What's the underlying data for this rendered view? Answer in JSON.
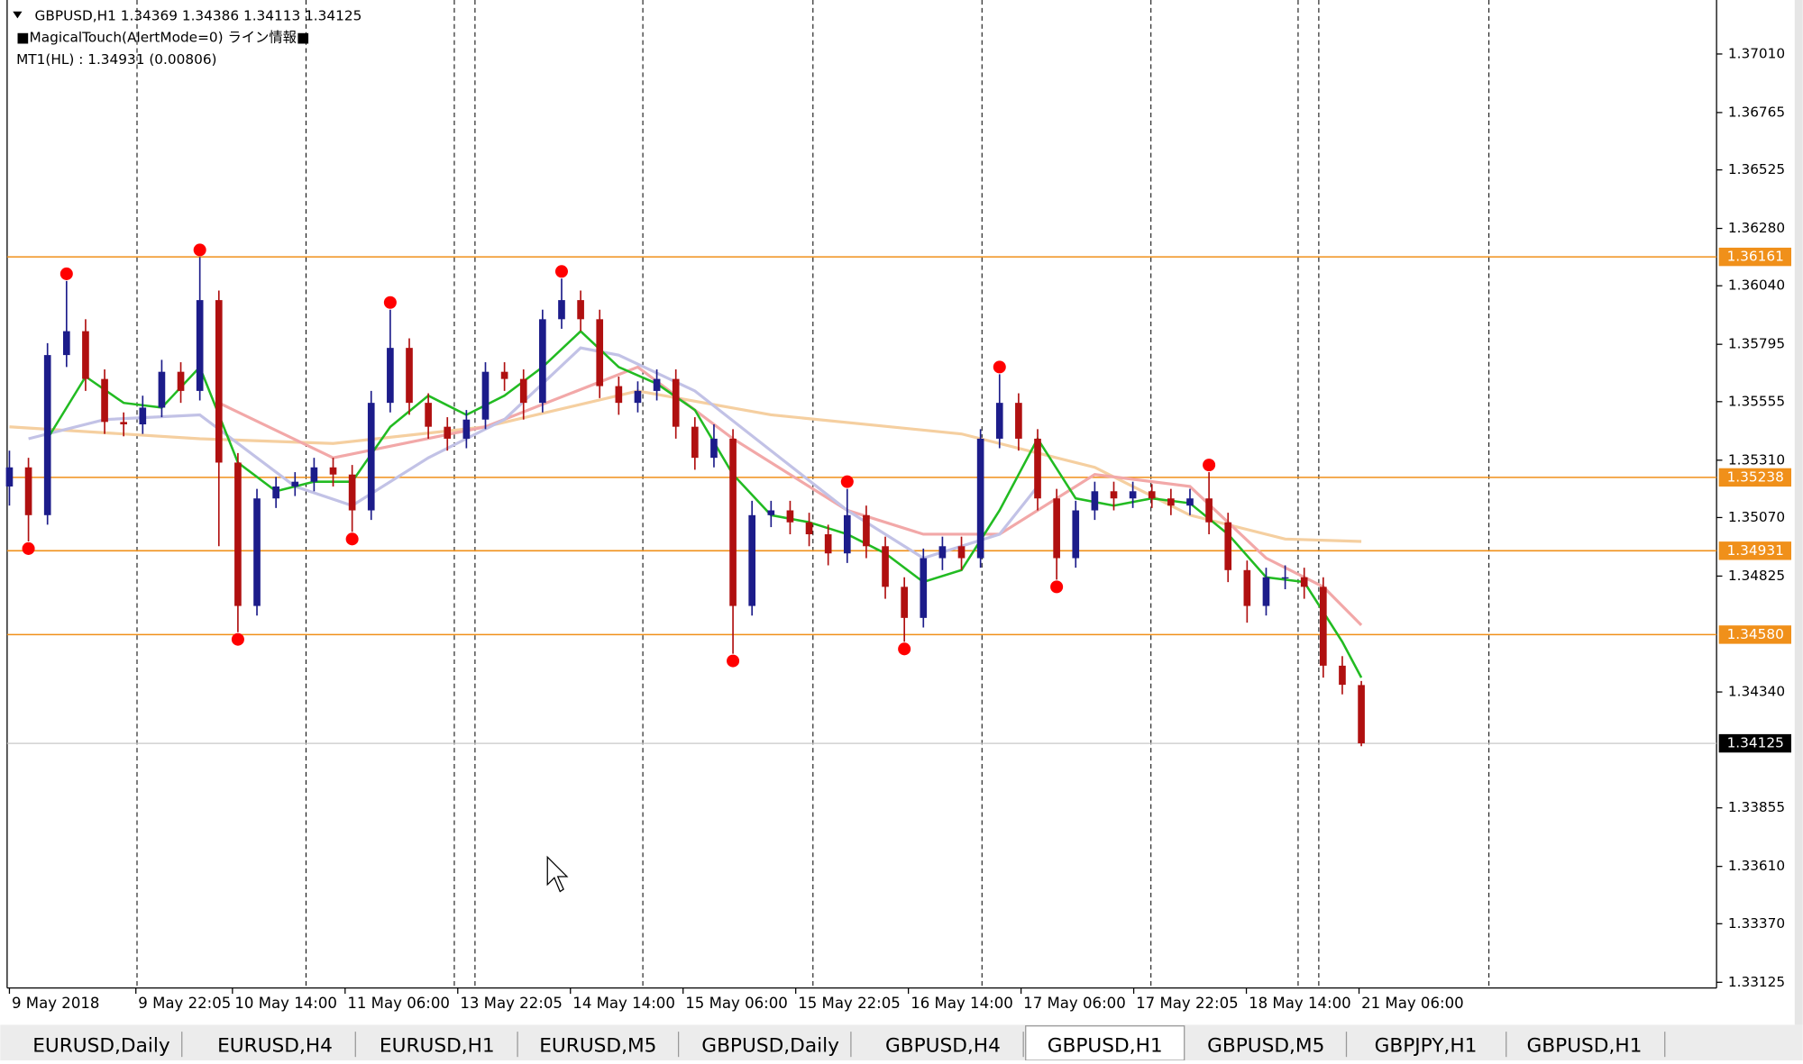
{
  "header": {
    "symbol_line": "GBPUSD,H1  1.34369 1.34386 1.34113 1.34125",
    "indicator": "■MagicalTouch(AlertMode=0) ライン情報■",
    "mt1": "MT1(HL) : 1.34931 (0.00806)"
  },
  "chart_data": {
    "type": "candlestick",
    "up_color": "#1c1c8a",
    "down_color": "#b01010",
    "ylim": [
      1.33101,
      1.37236
    ],
    "yticks": [
      {
        "value": 1.3701,
        "label": "1.37010"
      },
      1.36765,
      1.36525,
      {
        "value": 1.3628,
        "label": "1.36280"
      },
      {
        "value": 1.3604,
        "label": "1.36040"
      },
      1.35795,
      1.35555,
      {
        "value": 1.3531,
        "label": "1.35310"
      },
      {
        "value": 1.3507,
        "label": "1.35070"
      },
      1.34825,
      {
        "value": 1.3434,
        "label": "1.34340"
      },
      1.33855,
      {
        "value": 1.3361,
        "label": "1.33610"
      },
      {
        "value": 1.3337,
        "label": "1.33370"
      },
      1.33125
    ],
    "x_labels": [
      "9 May 2018",
      "9 May 22:05",
      "10 May 14:00",
      "11 May 06:00",
      "13 May 22:05",
      "14 May 14:00",
      "15 May 06:00",
      "15 May 22:05",
      "16 May 14:00",
      "17 May 06:00",
      "17 May 22:05",
      "18 May 14:00",
      "21 May 06:00"
    ],
    "candles": [
      [
        1.352,
        1.3535,
        1.3512,
        1.3528
      ],
      [
        1.3528,
        1.3532,
        1.3497,
        1.3508
      ],
      [
        1.3508,
        1.358,
        1.3504,
        1.3575
      ],
      [
        1.3575,
        1.3606,
        1.357,
        1.3585
      ],
      [
        1.3585,
        1.359,
        1.356,
        1.3565
      ],
      [
        1.3565,
        1.3569,
        1.3542,
        1.3547
      ],
      [
        1.3547,
        1.3551,
        1.3541,
        1.3546
      ],
      [
        1.3546,
        1.3558,
        1.3542,
        1.3553
      ],
      [
        1.3553,
        1.3573,
        1.3549,
        1.3568
      ],
      [
        1.3568,
        1.3572,
        1.3555,
        1.356
      ],
      [
        1.356,
        1.3616,
        1.3556,
        1.3598
      ],
      [
        1.3598,
        1.3602,
        1.3495,
        1.353
      ],
      [
        1.353,
        1.3534,
        1.3459,
        1.347
      ],
      [
        1.347,
        1.3519,
        1.3466,
        1.3515
      ],
      [
        1.3515,
        1.3524,
        1.3511,
        1.352
      ],
      [
        1.352,
        1.3526,
        1.3516,
        1.3522
      ],
      [
        1.3522,
        1.3532,
        1.3518,
        1.3528
      ],
      [
        1.3528,
        1.3532,
        1.352,
        1.3525
      ],
      [
        1.3525,
        1.3529,
        1.3501,
        1.351
      ],
      [
        1.351,
        1.356,
        1.3506,
        1.3555
      ],
      [
        1.3555,
        1.3594,
        1.3551,
        1.3578
      ],
      [
        1.3578,
        1.3582,
        1.355,
        1.3555
      ],
      [
        1.3555,
        1.3559,
        1.354,
        1.3545
      ],
      [
        1.3545,
        1.3549,
        1.3535,
        1.354
      ],
      [
        1.354,
        1.3552,
        1.3536,
        1.3548
      ],
      [
        1.3548,
        1.3572,
        1.3544,
        1.3568
      ],
      [
        1.3568,
        1.3572,
        1.356,
        1.3565
      ],
      [
        1.3565,
        1.3569,
        1.3548,
        1.3555
      ],
      [
        1.3555,
        1.3594,
        1.3551,
        1.359
      ],
      [
        1.359,
        1.3607,
        1.3586,
        1.3598
      ],
      [
        1.3598,
        1.3602,
        1.3585,
        1.359
      ],
      [
        1.359,
        1.3594,
        1.3557,
        1.3562
      ],
      [
        1.3562,
        1.3566,
        1.355,
        1.3555
      ],
      [
        1.3555,
        1.3564,
        1.3551,
        1.356
      ],
      [
        1.356,
        1.3569,
        1.3556,
        1.3565
      ],
      [
        1.3565,
        1.3569,
        1.354,
        1.3545
      ],
      [
        1.3545,
        1.3549,
        1.3527,
        1.3532
      ],
      [
        1.3532,
        1.3546,
        1.3528,
        1.354
      ],
      [
        1.354,
        1.3544,
        1.345,
        1.347
      ],
      [
        1.347,
        1.3514,
        1.3466,
        1.3508
      ],
      [
        1.3508,
        1.3514,
        1.3503,
        1.351
      ],
      [
        1.351,
        1.3514,
        1.35,
        1.3505
      ],
      [
        1.3505,
        1.3509,
        1.3495,
        1.35
      ],
      [
        1.35,
        1.3504,
        1.3487,
        1.3492
      ],
      [
        1.3492,
        1.3519,
        1.3488,
        1.3508
      ],
      [
        1.3508,
        1.3512,
        1.349,
        1.3495
      ],
      [
        1.3495,
        1.3499,
        1.3473,
        1.3478
      ],
      [
        1.3478,
        1.3482,
        1.3455,
        1.3465
      ],
      [
        1.3465,
        1.3494,
        1.3461,
        1.349
      ],
      [
        1.349,
        1.3499,
        1.3485,
        1.3495
      ],
      [
        1.3495,
        1.3499,
        1.3485,
        1.349
      ],
      [
        1.349,
        1.3544,
        1.3486,
        1.354
      ],
      [
        1.354,
        1.3567,
        1.3536,
        1.3555
      ],
      [
        1.3555,
        1.3559,
        1.3535,
        1.354
      ],
      [
        1.354,
        1.3544,
        1.351,
        1.3515
      ],
      [
        1.3515,
        1.3519,
        1.3481,
        1.349
      ],
      [
        1.349,
        1.3514,
        1.3486,
        1.351
      ],
      [
        1.351,
        1.3522,
        1.3506,
        1.3518
      ],
      [
        1.3518,
        1.3522,
        1.351,
        1.3515
      ],
      [
        1.3515,
        1.3522,
        1.3511,
        1.3518
      ],
      [
        1.3518,
        1.3521,
        1.3511,
        1.3515
      ],
      [
        1.3515,
        1.3519,
        1.3508,
        1.3512
      ],
      [
        1.3512,
        1.3519,
        1.3508,
        1.3515
      ],
      [
        1.3515,
        1.3526,
        1.35,
        1.3505
      ],
      [
        1.3505,
        1.3509,
        1.348,
        1.3485
      ],
      [
        1.3485,
        1.3489,
        1.3463,
        1.347
      ],
      [
        1.347,
        1.3486,
        1.3466,
        1.3482
      ],
      [
        1.3482,
        1.3487,
        1.3477,
        1.3482
      ],
      [
        1.3482,
        1.3486,
        1.3473,
        1.3478
      ],
      [
        1.3478,
        1.3482,
        1.344,
        1.3445
      ],
      [
        1.3445,
        1.3449,
        1.3433,
        1.3437
      ],
      [
        1.34369,
        1.34386,
        1.34113,
        1.34125
      ]
    ],
    "swing_points": {
      "color": "#ff0000",
      "x": [
        1,
        3,
        10,
        12,
        18,
        20,
        29,
        38,
        44,
        47,
        52,
        55,
        63
      ],
      "values": [
        1.3494,
        1.3609,
        1.3619,
        1.3456,
        1.3498,
        1.3597,
        1.361,
        1.3447,
        1.3522,
        1.3452,
        1.357,
        1.3478,
        1.3529
      ]
    },
    "moving_averages": [
      {
        "color": "#f5cfa0",
        "x": [
          0,
          10,
          17,
          25,
          33,
          40,
          50,
          57,
          62,
          67,
          71
        ],
        "values": [
          1.3545,
          1.354,
          1.3538,
          1.3545,
          1.356,
          1.355,
          1.3542,
          1.3528,
          1.3508,
          1.3498,
          1.3497
        ]
      },
      {
        "color": "#f2a8a8",
        "x": [
          11,
          17,
          25,
          33,
          38,
          44,
          48,
          52,
          57,
          62,
          66,
          69,
          71
        ],
        "values": [
          1.3555,
          1.3532,
          1.3545,
          1.357,
          1.354,
          1.351,
          1.35,
          1.35,
          1.3525,
          1.352,
          1.349,
          1.3478,
          1.3462
        ]
      },
      {
        "color": "#c2c2e6",
        "x": [
          1,
          5,
          10,
          15,
          18,
          22,
          26,
          30,
          32,
          36,
          40,
          44,
          48,
          52,
          54
        ],
        "values": [
          1.354,
          1.3548,
          1.355,
          1.352,
          1.3512,
          1.3532,
          1.3548,
          1.3578,
          1.3575,
          1.356,
          1.3535,
          1.351,
          1.349,
          1.35,
          1.352
        ]
      },
      {
        "color": "#22bb22",
        "x": [
          2,
          4,
          6,
          8,
          10,
          12,
          14,
          16,
          18,
          20,
          22,
          24,
          26,
          28,
          30,
          32,
          34,
          36,
          38,
          40,
          42,
          44,
          46,
          48,
          50,
          52,
          54,
          56,
          58,
          60,
          62,
          64,
          66,
          68,
          70,
          71
        ],
        "values": [
          1.354,
          1.3566,
          1.3555,
          1.3553,
          1.357,
          1.353,
          1.3518,
          1.3522,
          1.3522,
          1.3545,
          1.3558,
          1.355,
          1.3558,
          1.357,
          1.3585,
          1.357,
          1.3563,
          1.3552,
          1.3525,
          1.3508,
          1.3505,
          1.35,
          1.3492,
          1.348,
          1.3485,
          1.351,
          1.354,
          1.3515,
          1.3512,
          1.3515,
          1.3513,
          1.35,
          1.3482,
          1.348,
          1.3455,
          1.344
        ]
      }
    ],
    "levels": {
      "color": "#f0901a",
      "values": [
        1.36161,
        1.35238,
        1.34931,
        {
          "value": 1.3458,
          "label": "1.34580"
        }
      ]
    },
    "current_price": 1.34125
  },
  "tabs": [
    "EURUSD,Daily",
    "EURUSD,H4",
    "EURUSD,H1",
    "EURUSD,M5",
    "GBPUSD,Daily",
    "GBPUSD,H4",
    "GBPUSD,H1",
    "GBPUSD,M5",
    "GBPJPY,H1",
    "GBPUSD,H1"
  ],
  "active_tab": 6
}
